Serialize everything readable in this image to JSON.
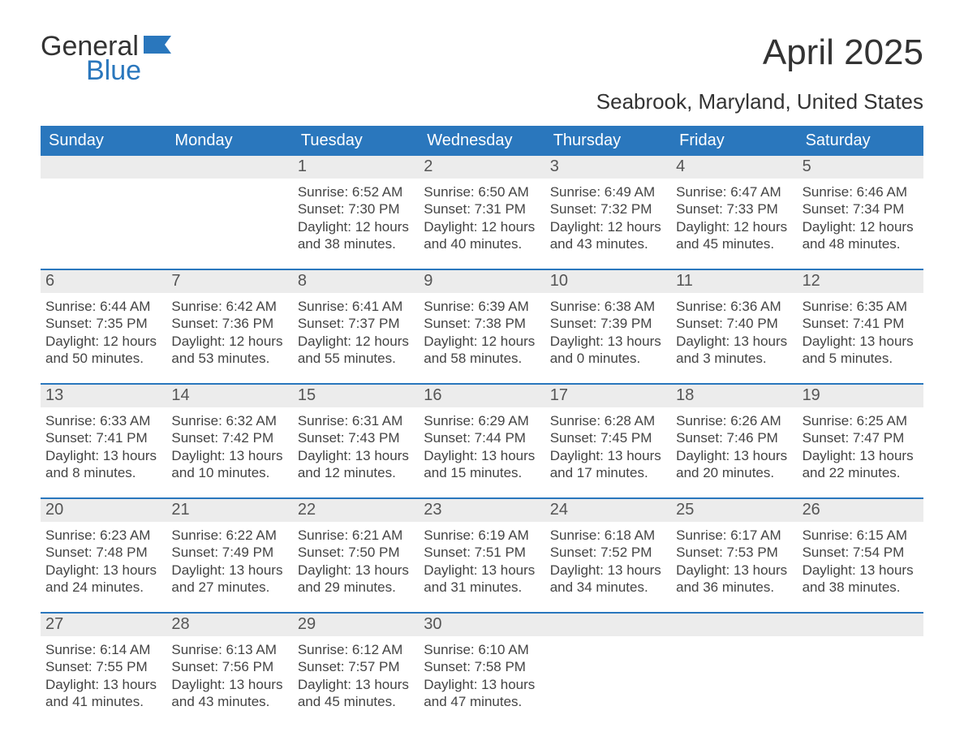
{
  "logo": {
    "word1": "General",
    "word2": "Blue"
  },
  "title": "April 2025",
  "location": "Seabrook, Maryland, United States",
  "colors": {
    "header_bg": "#2a77bd",
    "header_text": "#ffffff",
    "daynum_bg": "#ececec",
    "daynum_text": "#555555",
    "body_text": "#444444",
    "rule": "#2a77bd",
    "page_bg": "#ffffff"
  },
  "typography": {
    "title_fontsize": 44,
    "location_fontsize": 26,
    "dow_fontsize": 20,
    "daynum_fontsize": 20,
    "body_fontsize": 17,
    "logo_fontsize": 34
  },
  "dow": [
    "Sunday",
    "Monday",
    "Tuesday",
    "Wednesday",
    "Thursday",
    "Friday",
    "Saturday"
  ],
  "weeks": [
    [
      {
        "day": "",
        "sunrise": "",
        "sunset": "",
        "daylight": ""
      },
      {
        "day": "",
        "sunrise": "",
        "sunset": "",
        "daylight": ""
      },
      {
        "day": "1",
        "sunrise": "Sunrise: 6:52 AM",
        "sunset": "Sunset: 7:30 PM",
        "daylight": "Daylight: 12 hours and 38 minutes."
      },
      {
        "day": "2",
        "sunrise": "Sunrise: 6:50 AM",
        "sunset": "Sunset: 7:31 PM",
        "daylight": "Daylight: 12 hours and 40 minutes."
      },
      {
        "day": "3",
        "sunrise": "Sunrise: 6:49 AM",
        "sunset": "Sunset: 7:32 PM",
        "daylight": "Daylight: 12 hours and 43 minutes."
      },
      {
        "day": "4",
        "sunrise": "Sunrise: 6:47 AM",
        "sunset": "Sunset: 7:33 PM",
        "daylight": "Daylight: 12 hours and 45 minutes."
      },
      {
        "day": "5",
        "sunrise": "Sunrise: 6:46 AM",
        "sunset": "Sunset: 7:34 PM",
        "daylight": "Daylight: 12 hours and 48 minutes."
      }
    ],
    [
      {
        "day": "6",
        "sunrise": "Sunrise: 6:44 AM",
        "sunset": "Sunset: 7:35 PM",
        "daylight": "Daylight: 12 hours and 50 minutes."
      },
      {
        "day": "7",
        "sunrise": "Sunrise: 6:42 AM",
        "sunset": "Sunset: 7:36 PM",
        "daylight": "Daylight: 12 hours and 53 minutes."
      },
      {
        "day": "8",
        "sunrise": "Sunrise: 6:41 AM",
        "sunset": "Sunset: 7:37 PM",
        "daylight": "Daylight: 12 hours and 55 minutes."
      },
      {
        "day": "9",
        "sunrise": "Sunrise: 6:39 AM",
        "sunset": "Sunset: 7:38 PM",
        "daylight": "Daylight: 12 hours and 58 minutes."
      },
      {
        "day": "10",
        "sunrise": "Sunrise: 6:38 AM",
        "sunset": "Sunset: 7:39 PM",
        "daylight": "Daylight: 13 hours and 0 minutes."
      },
      {
        "day": "11",
        "sunrise": "Sunrise: 6:36 AM",
        "sunset": "Sunset: 7:40 PM",
        "daylight": "Daylight: 13 hours and 3 minutes."
      },
      {
        "day": "12",
        "sunrise": "Sunrise: 6:35 AM",
        "sunset": "Sunset: 7:41 PM",
        "daylight": "Daylight: 13 hours and 5 minutes."
      }
    ],
    [
      {
        "day": "13",
        "sunrise": "Sunrise: 6:33 AM",
        "sunset": "Sunset: 7:41 PM",
        "daylight": "Daylight: 13 hours and 8 minutes."
      },
      {
        "day": "14",
        "sunrise": "Sunrise: 6:32 AM",
        "sunset": "Sunset: 7:42 PM",
        "daylight": "Daylight: 13 hours and 10 minutes."
      },
      {
        "day": "15",
        "sunrise": "Sunrise: 6:31 AM",
        "sunset": "Sunset: 7:43 PM",
        "daylight": "Daylight: 13 hours and 12 minutes."
      },
      {
        "day": "16",
        "sunrise": "Sunrise: 6:29 AM",
        "sunset": "Sunset: 7:44 PM",
        "daylight": "Daylight: 13 hours and 15 minutes."
      },
      {
        "day": "17",
        "sunrise": "Sunrise: 6:28 AM",
        "sunset": "Sunset: 7:45 PM",
        "daylight": "Daylight: 13 hours and 17 minutes."
      },
      {
        "day": "18",
        "sunrise": "Sunrise: 6:26 AM",
        "sunset": "Sunset: 7:46 PM",
        "daylight": "Daylight: 13 hours and 20 minutes."
      },
      {
        "day": "19",
        "sunrise": "Sunrise: 6:25 AM",
        "sunset": "Sunset: 7:47 PM",
        "daylight": "Daylight: 13 hours and 22 minutes."
      }
    ],
    [
      {
        "day": "20",
        "sunrise": "Sunrise: 6:23 AM",
        "sunset": "Sunset: 7:48 PM",
        "daylight": "Daylight: 13 hours and 24 minutes."
      },
      {
        "day": "21",
        "sunrise": "Sunrise: 6:22 AM",
        "sunset": "Sunset: 7:49 PM",
        "daylight": "Daylight: 13 hours and 27 minutes."
      },
      {
        "day": "22",
        "sunrise": "Sunrise: 6:21 AM",
        "sunset": "Sunset: 7:50 PM",
        "daylight": "Daylight: 13 hours and 29 minutes."
      },
      {
        "day": "23",
        "sunrise": "Sunrise: 6:19 AM",
        "sunset": "Sunset: 7:51 PM",
        "daylight": "Daylight: 13 hours and 31 minutes."
      },
      {
        "day": "24",
        "sunrise": "Sunrise: 6:18 AM",
        "sunset": "Sunset: 7:52 PM",
        "daylight": "Daylight: 13 hours and 34 minutes."
      },
      {
        "day": "25",
        "sunrise": "Sunrise: 6:17 AM",
        "sunset": "Sunset: 7:53 PM",
        "daylight": "Daylight: 13 hours and 36 minutes."
      },
      {
        "day": "26",
        "sunrise": "Sunrise: 6:15 AM",
        "sunset": "Sunset: 7:54 PM",
        "daylight": "Daylight: 13 hours and 38 minutes."
      }
    ],
    [
      {
        "day": "27",
        "sunrise": "Sunrise: 6:14 AM",
        "sunset": "Sunset: 7:55 PM",
        "daylight": "Daylight: 13 hours and 41 minutes."
      },
      {
        "day": "28",
        "sunrise": "Sunrise: 6:13 AM",
        "sunset": "Sunset: 7:56 PM",
        "daylight": "Daylight: 13 hours and 43 minutes."
      },
      {
        "day": "29",
        "sunrise": "Sunrise: 6:12 AM",
        "sunset": "Sunset: 7:57 PM",
        "daylight": "Daylight: 13 hours and 45 minutes."
      },
      {
        "day": "30",
        "sunrise": "Sunrise: 6:10 AM",
        "sunset": "Sunset: 7:58 PM",
        "daylight": "Daylight: 13 hours and 47 minutes."
      },
      {
        "day": "",
        "sunrise": "",
        "sunset": "",
        "daylight": ""
      },
      {
        "day": "",
        "sunrise": "",
        "sunset": "",
        "daylight": ""
      },
      {
        "day": "",
        "sunrise": "",
        "sunset": "",
        "daylight": ""
      }
    ]
  ]
}
